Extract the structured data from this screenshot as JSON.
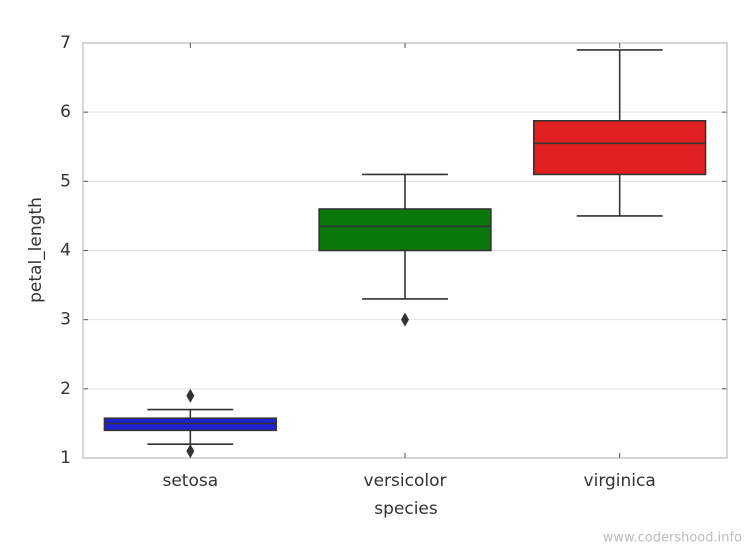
{
  "chart_data": {
    "type": "box",
    "x_label": "species",
    "y_label": "petal_length",
    "categories": [
      "setosa",
      "versicolor",
      "virginica"
    ],
    "boxes": [
      {
        "whislo": 1.2,
        "q1": 1.4,
        "median": 1.5,
        "q3": 1.575,
        "whishi": 1.7,
        "fliers": [
          1.1,
          1.9
        ],
        "color": "#2020d8"
      },
      {
        "whislo": 3.3,
        "q1": 4.0,
        "median": 4.35,
        "q3": 4.6,
        "whishi": 5.1,
        "fliers": [
          3.0
        ],
        "color": "#0b780b"
      },
      {
        "whislo": 4.5,
        "q1": 5.1,
        "median": 5.55,
        "q3": 5.875,
        "whishi": 6.9,
        "fliers": [],
        "color": "#e02020"
      }
    ],
    "ylim": [
      1,
      7
    ],
    "yticks": [
      1,
      2,
      3,
      4,
      5,
      6,
      7
    ],
    "grid": true,
    "watermark": "www.codershood.info"
  }
}
